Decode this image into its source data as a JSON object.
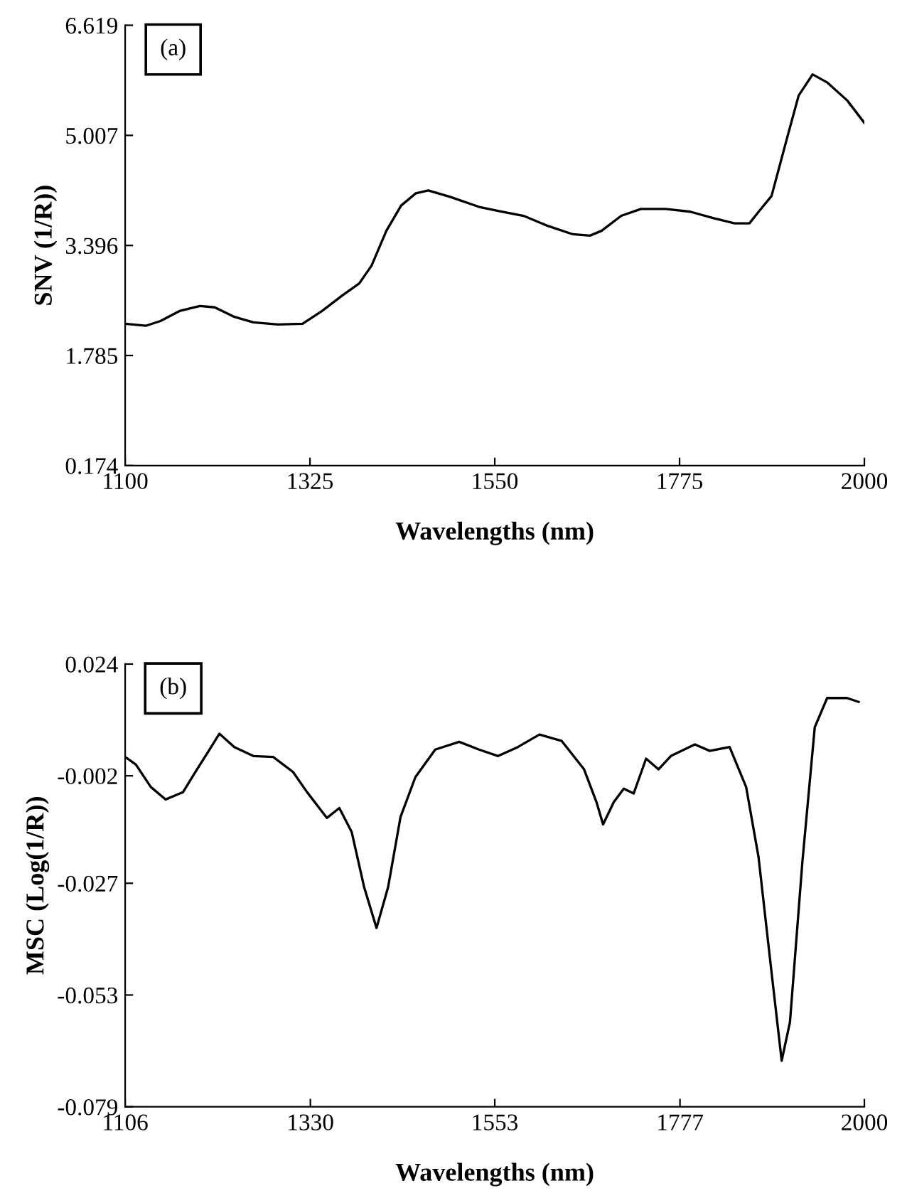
{
  "chart_data": [
    {
      "type": "line",
      "xlabel": "Wavelengths (nm)",
      "ylabel": "SNV (1/R))",
      "annotations": [
        "(a)"
      ],
      "grid": false,
      "legend": false,
      "marker": "none",
      "line_style": "solid",
      "xlim": [
        1100,
        2000
      ],
      "xticks": [
        1100,
        1325,
        1550,
        1775,
        2000
      ],
      "ylim": [
        0.174,
        6.619
      ],
      "yticks": [
        0.174,
        1.785,
        3.396,
        5.007,
        6.619
      ],
      "series": [
        {
          "color": "#000000",
          "x": [
            1100,
            1125,
            1143,
            1167,
            1191,
            1209,
            1233,
            1256,
            1286,
            1316,
            1340,
            1364,
            1385,
            1400,
            1418,
            1436,
            1454,
            1469,
            1495,
            1531,
            1555,
            1585,
            1615,
            1645,
            1666,
            1680,
            1704,
            1728,
            1758,
            1788,
            1818,
            1842,
            1860,
            1872,
            1887,
            1905,
            1920,
            1937,
            1955,
            1979,
            2000
          ],
          "values": [
            2.25,
            2.22,
            2.29,
            2.44,
            2.51,
            2.49,
            2.35,
            2.27,
            2.24,
            2.25,
            2.44,
            2.66,
            2.84,
            3.1,
            3.61,
            3.98,
            4.16,
            4.2,
            4.11,
            3.96,
            3.9,
            3.83,
            3.68,
            3.56,
            3.54,
            3.61,
            3.83,
            3.93,
            3.93,
            3.89,
            3.79,
            3.72,
            3.72,
            3.9,
            4.12,
            4.93,
            5.59,
            5.9,
            5.78,
            5.52,
            5.19
          ]
        }
      ]
    },
    {
      "type": "line",
      "xlabel": "Wavelengths (nm)",
      "ylabel": "MSC (Log(1/R))",
      "annotations": [
        "(b)"
      ],
      "grid": false,
      "legend": false,
      "marker": "none",
      "line_style": "solid",
      "xlim": [
        1106,
        2000
      ],
      "xticks": [
        1106,
        1330,
        1553,
        1777,
        2000
      ],
      "ylim": [
        -0.079,
        0.024
      ],
      "yticks": [
        -0.079,
        -0.053,
        -0.027,
        -0.002,
        0.024
      ],
      "series": [
        {
          "color": "#000000",
          "x": [
            1106,
            1119,
            1137,
            1155,
            1176,
            1191,
            1208,
            1220,
            1238,
            1261,
            1285,
            1309,
            1326,
            1350,
            1365,
            1380,
            1395,
            1410,
            1424,
            1439,
            1457,
            1481,
            1510,
            1534,
            1557,
            1581,
            1607,
            1634,
            1661,
            1676,
            1684,
            1697,
            1709,
            1721,
            1736,
            1751,
            1766,
            1795,
            1813,
            1837,
            1857,
            1872,
            1887,
            1900,
            1910,
            1925,
            1940,
            1955,
            1979,
            1993
          ],
          "values": [
            0.0024,
            0.0006,
            -0.0046,
            -0.0075,
            -0.0058,
            -0.0011,
            0.0041,
            0.0078,
            0.0047,
            0.0026,
            0.0024,
            -0.0011,
            -0.0058,
            -0.0118,
            -0.0095,
            -0.0151,
            -0.0279,
            -0.0374,
            -0.0279,
            -0.0116,
            -0.0023,
            0.0041,
            0.0059,
            0.0041,
            0.0026,
            0.0047,
            0.0076,
            0.0061,
            -0.0005,
            -0.0081,
            -0.0133,
            -0.0081,
            -0.005,
            -0.0061,
            0.002,
            -0.0005,
            0.0026,
            0.0053,
            0.0038,
            0.0047,
            -0.0046,
            -0.0209,
            -0.0465,
            -0.0683,
            -0.0593,
            -0.0221,
            0.0093,
            0.0161,
            0.0161,
            0.0152
          ]
        }
      ]
    }
  ]
}
